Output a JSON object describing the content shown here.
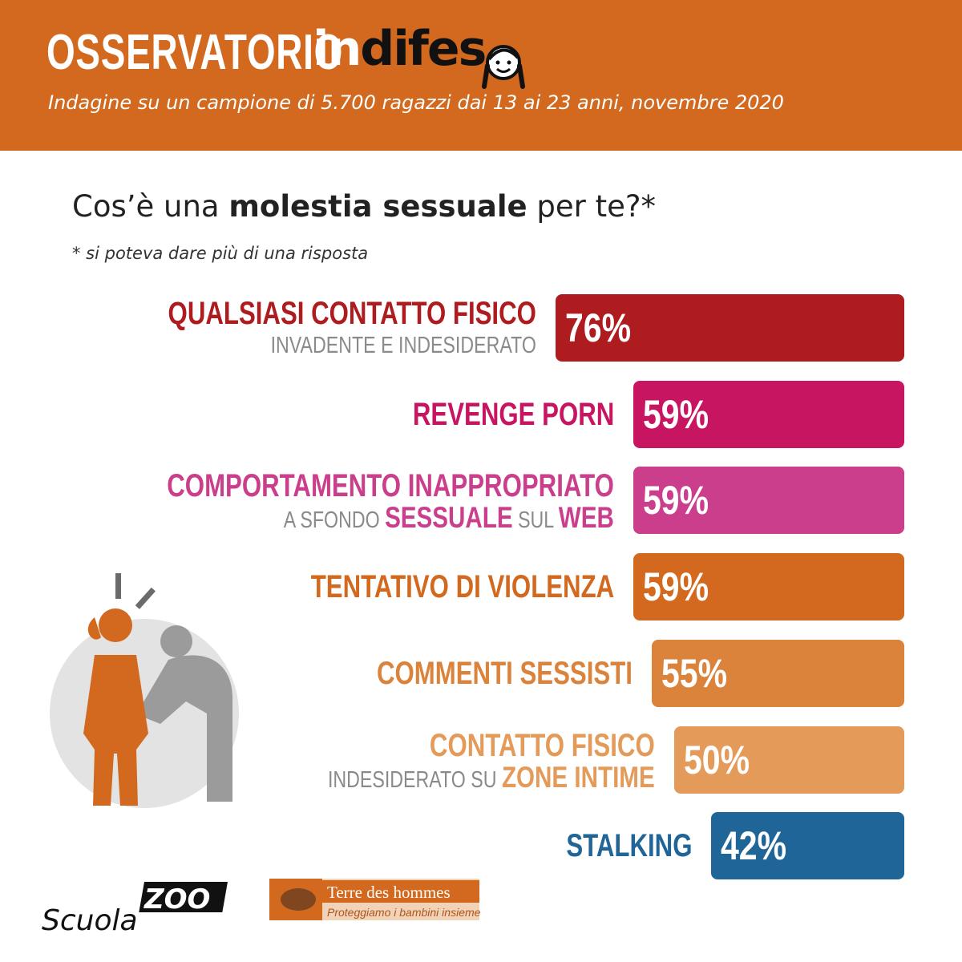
{
  "header": {
    "brand_part1": "OSSERVATORIO",
    "brand_part2_white": "in",
    "brand_part2_black": "difes",
    "subtitle": "Indagine su un campione di 5.700 ragazzi dai 13 ai 23 anni, novembre 2020"
  },
  "question": {
    "prefix": "Cos’è una ",
    "bold": "molestia sessuale",
    "suffix": " per te?*"
  },
  "note": "* si poteva dare più di una risposta",
  "logos": {
    "scuola": "Scuola",
    "zoo": "ZOO",
    "tdh_name": "Terre des hommes",
    "tdh_tagline": "Proteggiamo i bambini insieme"
  },
  "colors": {
    "header": "#d2691e",
    "grey_text": "#8a8a8a"
  },
  "chart_data": {
    "type": "bar",
    "orientation": "horizontal",
    "unit": "%",
    "items": [
      {
        "line1": "QUALSIASI CONTATTO FISICO",
        "line2": [
          {
            "t": "INVADENTE E INDESIDERATO",
            "em": false
          }
        ],
        "value": 76,
        "value_label": "76%",
        "color": "#ae1c20"
      },
      {
        "line1": "REVENGE PORN",
        "line2": [],
        "value": 59,
        "value_label": "59%",
        "color": "#c81562"
      },
      {
        "line1": "COMPORTAMENTO INAPPROPRIATO",
        "line2": [
          {
            "t": "A SFONDO ",
            "em": false
          },
          {
            "t": "SESSUALE",
            "em": true
          },
          {
            "t": " SUL ",
            "em": false
          },
          {
            "t": "WEB",
            "em": true
          }
        ],
        "value": 59,
        "value_label": "59%",
        "color": "#cb3e8c"
      },
      {
        "line1": "TENTATIVO DI VIOLENZA",
        "line2": [],
        "value": 59,
        "value_label": "59%",
        "color": "#d2691e"
      },
      {
        "line1": "COMMENTI SESSISTI",
        "line2": [],
        "value": 55,
        "value_label": "55%",
        "color": "#db823b"
      },
      {
        "line1": "CONTATTO FISICO",
        "line2": [
          {
            "t": "INDESIDERATO SU ",
            "em": false
          },
          {
            "t": "ZONE INTIME",
            "em": true
          }
        ],
        "value": 50,
        "value_label": "50%",
        "color": "#e49a58"
      },
      {
        "line1": "STALKING",
        "line2": [],
        "value": 42,
        "value_label": "42%",
        "color": "#1f6597"
      }
    ]
  }
}
